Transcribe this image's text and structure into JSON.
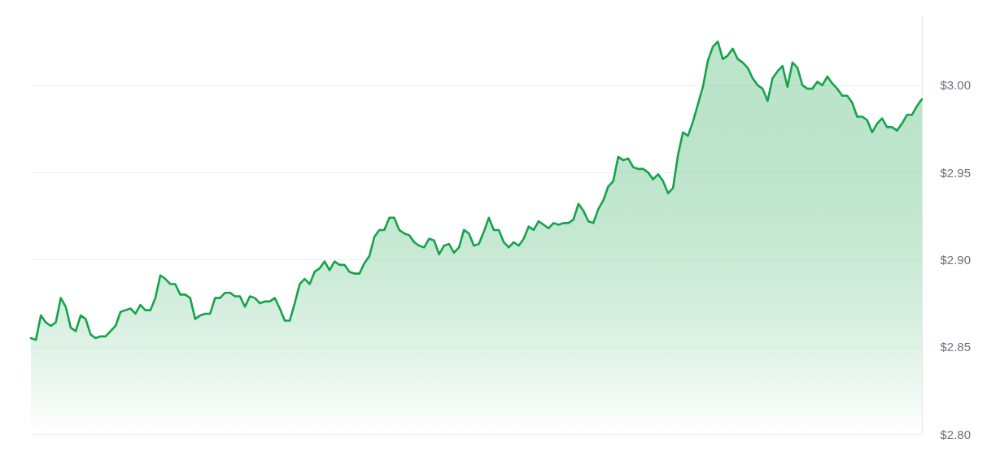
{
  "chart_data": {
    "type": "area",
    "tick_labels": "y",
    "grid": "y",
    "categories": [
      null,
      null,
      null,
      null,
      null,
      null,
      null,
      null,
      null,
      null,
      null,
      null,
      null,
      null,
      null,
      null,
      null,
      null,
      null,
      null,
      null,
      null,
      null,
      null,
      null,
      null,
      null,
      null,
      null,
      null,
      null,
      null,
      null,
      null,
      null,
      null,
      null,
      null,
      null,
      null,
      null,
      null,
      null,
      null,
      null,
      null,
      null,
      null,
      null,
      null,
      null,
      null,
      null,
      null,
      null,
      null,
      null,
      null,
      null,
      null,
      null,
      null,
      null,
      null,
      null,
      null,
      null,
      null,
      null,
      null,
      null,
      null,
      null,
      null,
      null,
      null,
      null,
      null,
      null,
      null,
      null,
      null,
      null,
      null,
      null,
      null,
      null,
      null,
      null,
      null,
      null,
      null,
      null,
      null,
      null,
      null,
      null,
      null,
      null,
      null,
      null,
      null,
      null,
      null,
      null,
      null,
      null,
      null,
      null,
      null,
      null,
      null,
      null,
      null,
      null,
      null,
      null,
      null,
      null,
      null,
      null,
      null,
      null,
      null,
      null,
      null,
      null,
      null,
      null,
      null,
      null,
      null,
      null,
      null,
      null,
      null,
      null,
      null,
      null,
      null,
      null,
      null,
      null,
      null,
      null,
      null,
      null,
      null,
      null,
      null,
      null,
      null,
      null,
      null,
      null,
      null,
      null,
      null,
      null,
      null,
      null,
      null,
      null,
      null,
      null,
      null,
      null,
      null,
      null,
      null,
      null,
      null,
      null,
      null,
      null,
      null,
      null,
      null,
      null,
      null
    ],
    "series": [
      {
        "color": "#16a34a",
        "values": [
          2.855,
          2.854,
          2.868,
          2.864,
          2.862,
          2.864,
          2.878,
          2.873,
          2.861,
          2.859,
          2.868,
          2.866,
          2.857,
          2.855,
          2.856,
          2.856,
          2.859,
          2.862,
          2.87,
          2.871,
          2.872,
          2.869,
          2.874,
          2.871,
          2.871,
          2.878,
          2.891,
          2.889,
          2.886,
          2.886,
          2.88,
          2.88,
          2.878,
          2.866,
          2.868,
          2.869,
          2.869,
          2.878,
          2.878,
          2.881,
          2.881,
          2.879,
          2.879,
          2.873,
          2.879,
          2.878,
          2.875,
          2.876,
          2.876,
          2.878,
          2.872,
          2.865,
          2.865,
          2.875,
          2.886,
          2.889,
          2.886,
          2.893,
          2.895,
          2.899,
          2.894,
          2.899,
          2.897,
          2.897,
          2.893,
          2.892,
          2.892,
          2.898,
          2.902,
          2.913,
          2.917,
          2.917,
          2.924,
          2.924,
          2.917,
          2.915,
          2.914,
          2.91,
          2.908,
          2.907,
          2.912,
          2.911,
          2.903,
          2.908,
          2.909,
          2.904,
          2.907,
          2.917,
          2.915,
          2.908,
          2.909,
          2.916,
          2.924,
          2.917,
          2.917,
          2.91,
          2.907,
          2.91,
          2.908,
          2.912,
          2.919,
          2.917,
          2.922,
          2.92,
          2.918,
          2.921,
          2.92,
          2.921,
          2.921,
          2.923,
          2.932,
          2.928,
          2.922,
          2.921,
          2.929,
          2.934,
          2.942,
          2.945,
          2.959,
          2.957,
          2.958,
          2.953,
          2.952,
          2.952,
          2.95,
          2.946,
          2.949,
          2.945,
          2.938,
          2.941,
          2.96,
          2.973,
          2.971,
          2.979,
          2.989,
          2.999,
          3.014,
          3.022,
          3.025,
          3.015,
          3.017,
          3.021,
          3.015,
          3.013,
          3.01,
          3.004,
          3.0,
          2.998,
          2.991,
          3.004,
          3.008,
          3.011,
          2.999,
          3.013,
          3.01,
          3.0,
          2.998,
          2.998,
          3.002,
          3.0,
          3.005,
          3.001,
          2.998,
          2.994,
          2.994,
          2.99,
          2.982,
          2.982,
          2.98,
          2.973,
          2.978,
          2.981,
          2.976,
          2.976,
          2.974,
          2.978,
          2.983,
          2.983,
          2.988,
          2.992
        ]
      }
    ],
    "ylim": [
      2.8,
      3.04
    ],
    "yticks": [
      {
        "value": 2.8,
        "label": "$2.80"
      },
      {
        "value": 2.85,
        "label": "$2.85"
      },
      {
        "value": 2.9,
        "label": "$2.90"
      },
      {
        "value": 2.95,
        "label": "$2.95"
      },
      {
        "value": 3.0,
        "label": "$3.00"
      }
    ]
  }
}
